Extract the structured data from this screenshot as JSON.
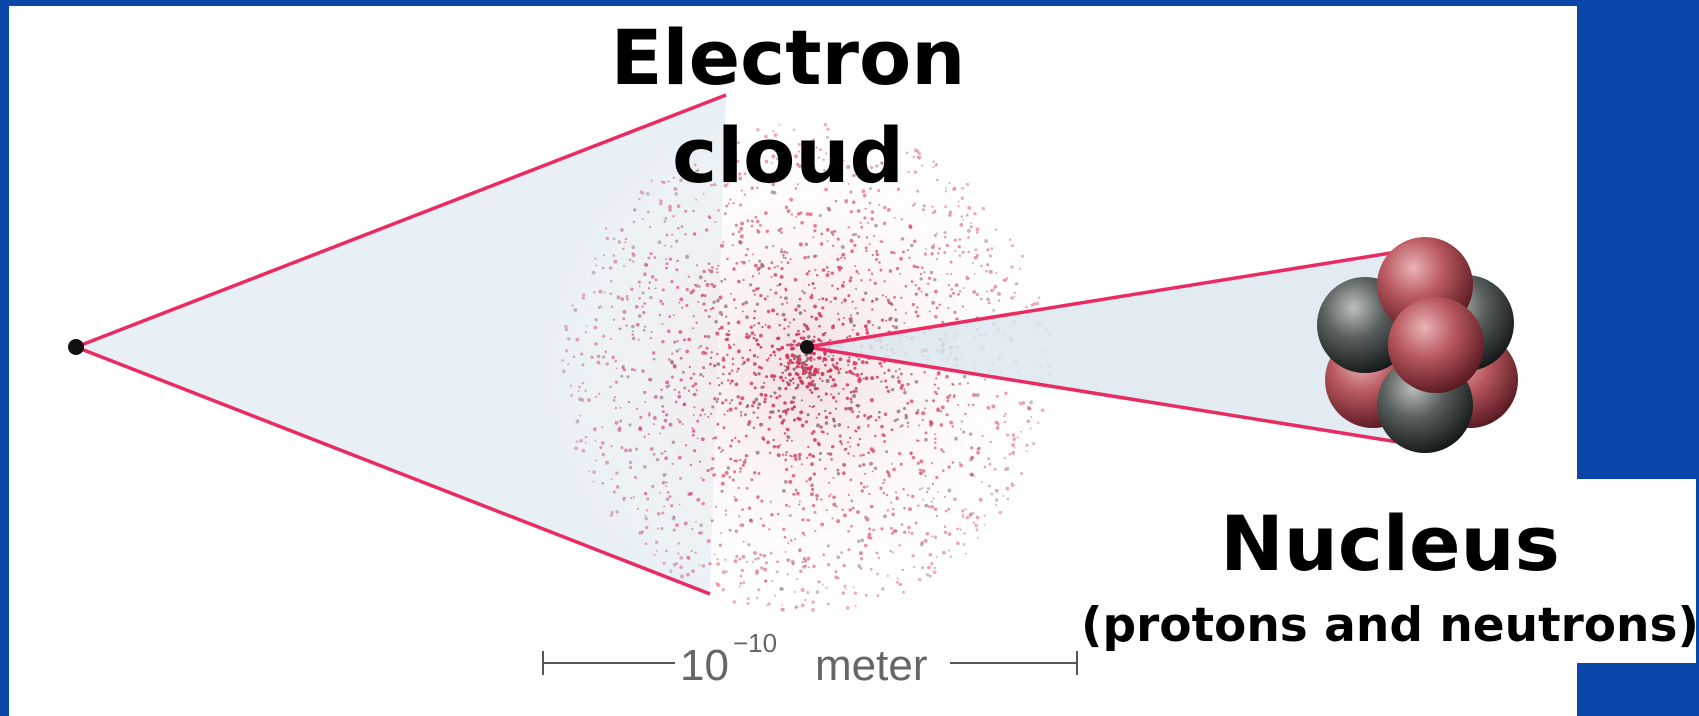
{
  "labels": {
    "electron_line1": "Electron",
    "electron_line2": "cloud",
    "nucleus": "Nucleus",
    "nucleus_detail": "(protons and neutrons)"
  },
  "scale_bar": {
    "base": "10",
    "exponent": "−10",
    "unit": "meter"
  }
}
